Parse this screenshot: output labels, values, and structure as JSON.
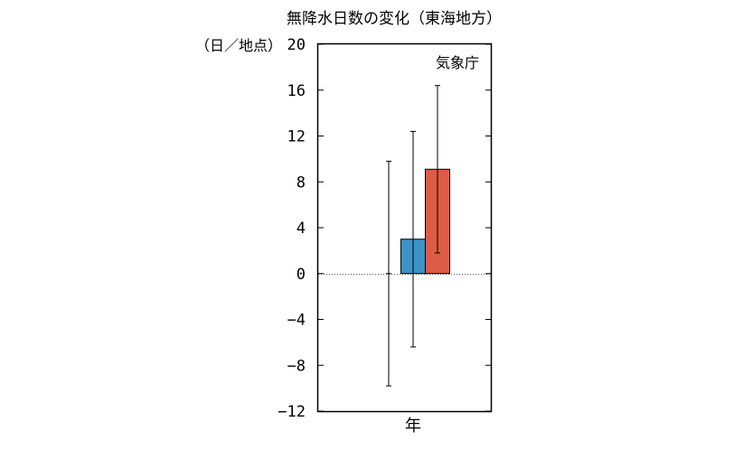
{
  "chart_data": {
    "type": "bar",
    "title": "無降水日数の変化（東海地方）",
    "ylabel": "（日／地点）",
    "source": "気象庁",
    "categories": [
      "年"
    ],
    "ylim": [
      -12,
      20
    ],
    "yticks": [
      "20",
      "16",
      "12",
      "8",
      "4",
      "0",
      "−4",
      "−8",
      "−12"
    ],
    "ytick_values": [
      20,
      16,
      12,
      8,
      4,
      0,
      -4,
      -8,
      -12
    ],
    "series": [
      {
        "values": [
          0
        ],
        "error_low": [
          -9.8
        ],
        "error_high": [
          9.8
        ],
        "color": ""
      },
      {
        "values": [
          3.0
        ],
        "error_low": [
          -6.4
        ],
        "error_high": [
          12.4
        ],
        "color": "#3d93c5"
      },
      {
        "values": [
          9.1
        ],
        "error_low": [
          1.8
        ],
        "error_high": [
          16.4
        ],
        "color": "#dd5c45"
      }
    ],
    "zero_line": true,
    "grid": false
  }
}
